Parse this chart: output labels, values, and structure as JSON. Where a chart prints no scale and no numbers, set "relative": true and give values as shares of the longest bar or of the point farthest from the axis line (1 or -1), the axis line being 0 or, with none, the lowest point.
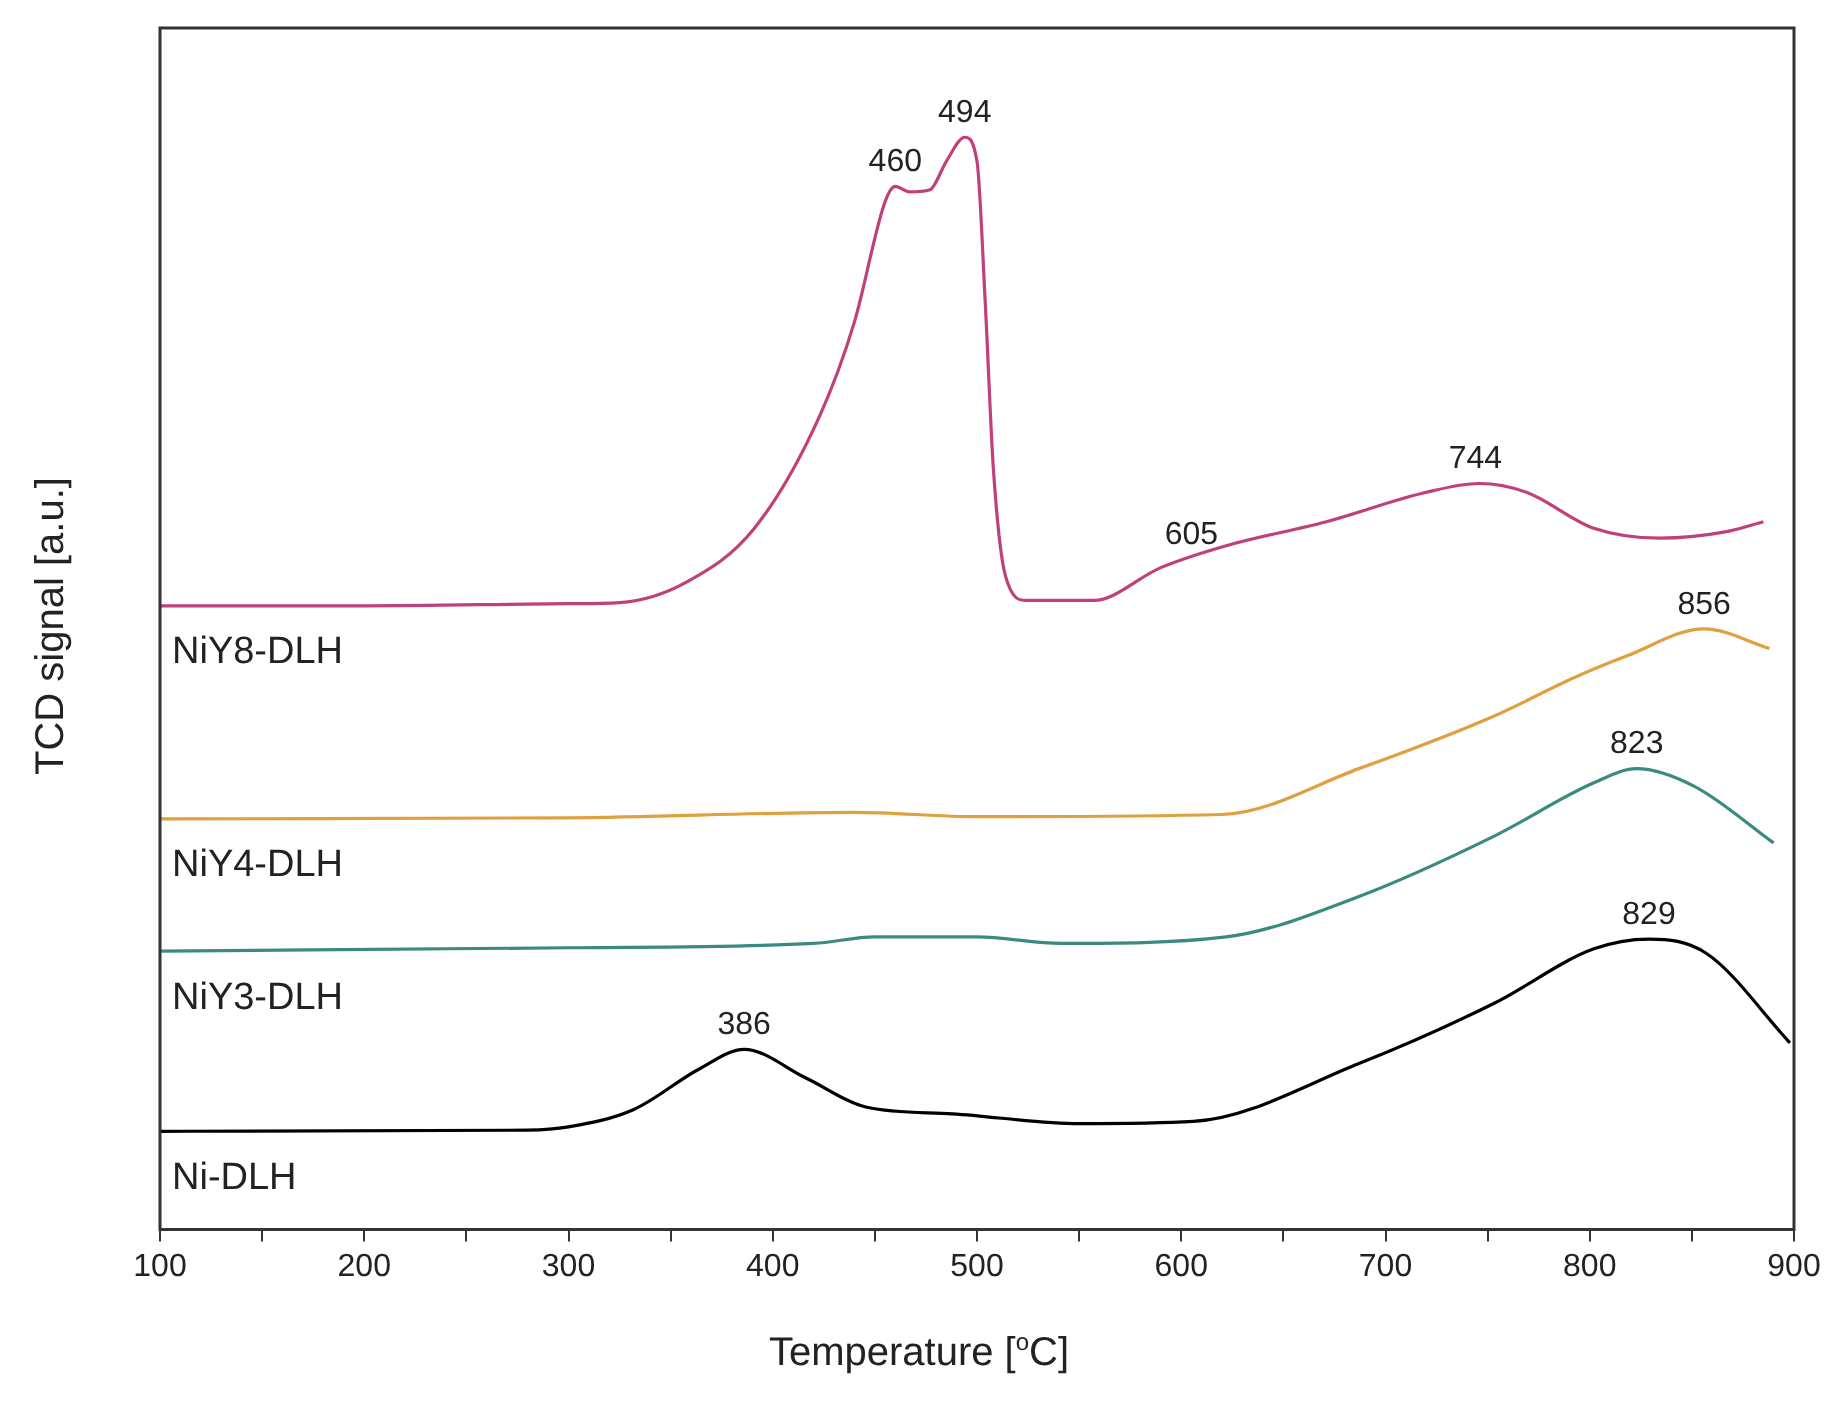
{
  "chart_data": {
    "type": "line",
    "relative": true,
    "xlabel": "Temperature [$^{o}$C]",
    "ylabel": "TCD signal [a.u.]",
    "legend": false,
    "grid": false,
    "tick_labels": "x",
    "xlim": [
      100,
      900
    ],
    "xticks": [
      100,
      {
        "value": 150,
        "label": null
      },
      200,
      {
        "value": 250,
        "label": null
      },
      300,
      {
        "value": 350,
        "label": null
      },
      400,
      {
        "value": 450,
        "label": null
      },
      500,
      {
        "value": 550,
        "label": null
      },
      600,
      {
        "value": 650,
        "label": null
      },
      700,
      {
        "value": 750,
        "label": null
      },
      800,
      {
        "value": 850,
        "label": null
      },
      900
    ],
    "series": [
      {
        "name": "NiY8-DLH",
        "color": "#c0407a",
        "x": [
          100,
          200,
          300,
          325,
          358,
          391,
          423,
          440,
          455,
          460,
          467,
          477,
          485,
          494,
          500,
          504,
          508,
          514,
          524,
          557,
          590,
          622,
          671,
          720,
          746,
          769,
          802,
          834,
          867,
          885
        ],
        "values": [
          0.571,
          0.571,
          0.573,
          0.574,
          0.593,
          0.642,
          0.745,
          0.831,
          0.941,
          0.955,
          0.95,
          0.952,
          0.978,
          1,
          0.978,
          0.85,
          0.697,
          0.598,
          0.576,
          0.576,
          0.606,
          0.626,
          0.648,
          0.675,
          0.683,
          0.675,
          0.642,
          0.633,
          0.639,
          0.648
        ]
      },
      {
        "name": "NiY4-DLH",
        "color": "#e0a040",
        "x": [
          100,
          300,
          440,
          500,
          620,
          687,
          753,
          792,
          818,
          856,
          888
        ],
        "values": [
          0.376,
          0.377,
          0.382,
          0.378,
          0.38,
          0.422,
          0.47,
          0.505,
          0.525,
          0.55,
          0.532
        ]
      },
      {
        "name": "NiY3-DLH",
        "color": "#3a8a80",
        "x": [
          100,
          300,
          420,
          450,
          500,
          541,
          622,
          687,
          753,
          802,
          823,
          851,
          890
        ],
        "values": [
          0.255,
          0.258,
          0.262,
          0.268,
          0.268,
          0.262,
          0.268,
          0.305,
          0.36,
          0.409,
          0.422,
          0.406,
          0.354
        ]
      },
      {
        "name": "Ni-DLH",
        "color": "#000000",
        "x": [
          100,
          280,
          300,
          332,
          364,
          386,
          416,
          446,
          488,
          550,
          606,
          687,
          753,
          802,
          829,
          857,
          898
        ],
        "values": [
          0.09,
          0.091,
          0.094,
          0.11,
          0.147,
          0.165,
          0.139,
          0.112,
          0.106,
          0.097,
          0.099,
          0.152,
          0.207,
          0.257,
          0.266,
          0.253,
          0.171
        ]
      }
    ],
    "annotations": [
      {
        "text": "460",
        "x": 460,
        "y": 0.955
      },
      {
        "text": "494",
        "x": 494,
        "y": 1
      },
      {
        "text": "605",
        "x": 605,
        "y": 0.614
      },
      {
        "text": "744",
        "x": 744,
        "y": 0.683
      },
      {
        "text": "856",
        "x": 856,
        "y": 0.55
      },
      {
        "text": "823",
        "x": 823,
        "y": 0.422
      },
      {
        "text": "829",
        "x": 829,
        "y": 0.266
      },
      {
        "text": "386",
        "x": 386,
        "y": 0.165
      }
    ]
  }
}
